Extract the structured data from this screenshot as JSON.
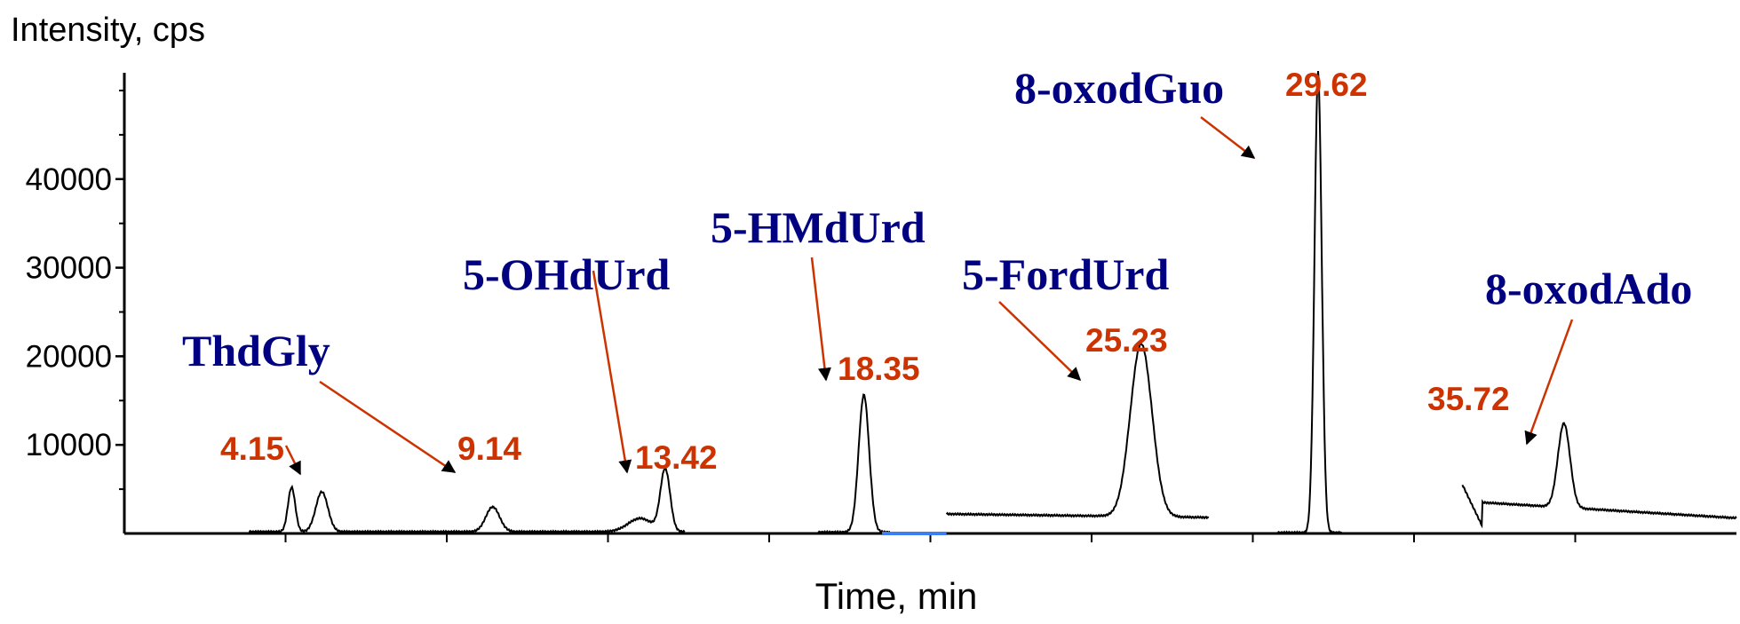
{
  "chart_data": {
    "type": "line",
    "ylabel": "Intensity, cps",
    "xlabel": "Time, min",
    "xlim": [
      0,
      40
    ],
    "ylim": [
      0,
      52000
    ],
    "y_ticks": [
      10000,
      20000,
      30000,
      40000
    ],
    "x_ticks": [
      4,
      8,
      12,
      16,
      20,
      24,
      28,
      32,
      36
    ],
    "grid": false,
    "colors": {
      "trace": "#000000",
      "retention_time": "#cc3300",
      "compound": "#000080",
      "arrow": "#cc3300",
      "marker": "#3d7ef0"
    },
    "peaks": [
      {
        "rt": 4.15,
        "rt_label": "4.15",
        "height": 5000,
        "compound": "ThdGly"
      },
      {
        "rt": 9.14,
        "rt_label": "9.14",
        "height": 2800,
        "compound": "ThdGly"
      },
      {
        "rt": 13.42,
        "rt_label": "13.42",
        "height": 7000,
        "compound": "5-OHdUrd"
      },
      {
        "rt": 18.35,
        "rt_label": "18.35",
        "height": 15500,
        "compound": "5-HMdUrd"
      },
      {
        "rt": 25.23,
        "rt_label": "25.23",
        "height": 19500,
        "compound": "5-FordUrd"
      },
      {
        "rt": 29.62,
        "rt_label": "29.62",
        "height": 52000,
        "compound": "8-oxodGuo"
      },
      {
        "rt": 35.72,
        "rt_label": "35.72",
        "height": 13000,
        "compound": "8-oxodAdo"
      }
    ],
    "compound_labels": [
      "ThdGly",
      "5-OHdUrd",
      "5-HMdUrd",
      "5-FordUrd",
      "8-oxodGuo",
      "8-oxodAdo"
    ]
  }
}
